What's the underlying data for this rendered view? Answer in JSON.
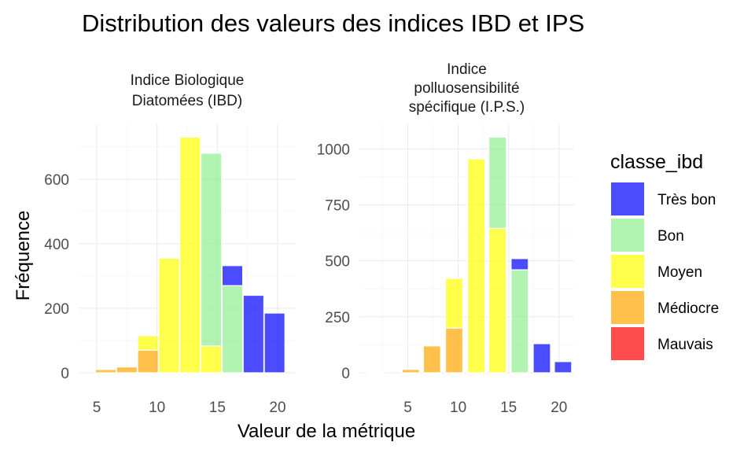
{
  "chart_data": {
    "type": "bar",
    "title": "Distribution des valeurs des indices IBD et IPS",
    "xlabel": "Valeur de la métrique",
    "ylabel": "Fréquence",
    "legend": {
      "title": "classe_ibd",
      "position": "right",
      "items": [
        {
          "name": "Très bon",
          "color": "#0000FF"
        },
        {
          "name": "Bon",
          "color": "#90EE90"
        },
        {
          "name": "Moyen",
          "color": "#FFFF00"
        },
        {
          "name": "Médiocre",
          "color": "#FFA500"
        },
        {
          "name": "Mauvais",
          "color": "#FF0000"
        }
      ]
    },
    "grid": true,
    "stacked": true,
    "panels": [
      {
        "strip": [
          "Indice Biologique",
          "Diatomées (IBD)"
        ],
        "xlim": [
          3.5,
          21.5
        ],
        "ylim": [
          0,
          770
        ],
        "xticks": [
          5,
          10,
          15,
          20
        ],
        "yticks": [
          0,
          200,
          400,
          600
        ],
        "bars": [
          {
            "x": 5.75,
            "stack": [
              {
                "class": "Médiocre",
                "value": 10
              }
            ]
          },
          {
            "x": 7.5,
            "stack": [
              {
                "class": "Médiocre",
                "value": 18
              }
            ]
          },
          {
            "x": 9.25,
            "stack": [
              {
                "class": "Médiocre",
                "value": 70
              },
              {
                "class": "Moyen",
                "value": 45
              }
            ]
          },
          {
            "x": 11,
            "stack": [
              {
                "class": "Moyen",
                "value": 355
              }
            ]
          },
          {
            "x": 12.75,
            "stack": [
              {
                "class": "Moyen",
                "value": 730
              }
            ]
          },
          {
            "x": 14.5,
            "stack": [
              {
                "class": "Moyen",
                "value": 83
              },
              {
                "class": "Bon",
                "value": 597
              }
            ]
          },
          {
            "x": 16.25,
            "stack": [
              {
                "class": "Bon",
                "value": 270
              },
              {
                "class": "Très bon",
                "value": 62
              }
            ]
          },
          {
            "x": 18,
            "stack": [
              {
                "class": "Très bon",
                "value": 240
              }
            ]
          },
          {
            "x": 19.75,
            "stack": [
              {
                "class": "Très bon",
                "value": 185
              }
            ]
          }
        ]
      },
      {
        "strip": [
          "Indice",
          "polluosensibilité",
          "spécifique (I.P.S.)"
        ],
        "xlim": [
          0.2,
          21.5
        ],
        "ylim": [
          0,
          1110
        ],
        "xticks": [
          5,
          10,
          15,
          20
        ],
        "yticks": [
          0,
          250,
          500,
          750,
          1000
        ],
        "bars": [
          {
            "x": 1.8,
            "stack": [
              {
                "class": "Médiocre",
                "value": 2
              }
            ]
          },
          {
            "x": 5.3,
            "stack": [
              {
                "class": "Médiocre",
                "value": 15
              }
            ]
          },
          {
            "x": 7.4,
            "stack": [
              {
                "class": "Médiocre",
                "value": 120
              }
            ]
          },
          {
            "x": 9.6,
            "stack": [
              {
                "class": "Médiocre",
                "value": 200
              },
              {
                "class": "Moyen",
                "value": 222
              }
            ]
          },
          {
            "x": 11.8,
            "stack": [
              {
                "class": "Moyen",
                "value": 955
              }
            ]
          },
          {
            "x": 13.9,
            "stack": [
              {
                "class": "Moyen",
                "value": 645
              },
              {
                "class": "Bon",
                "value": 408
              }
            ]
          },
          {
            "x": 16.1,
            "stack": [
              {
                "class": "Bon",
                "value": 460
              },
              {
                "class": "Très bon",
                "value": 50
              }
            ]
          },
          {
            "x": 18.3,
            "stack": [
              {
                "class": "Très bon",
                "value": 130
              }
            ]
          },
          {
            "x": 20.4,
            "stack": [
              {
                "class": "Très bon",
                "value": 50
              }
            ]
          }
        ]
      }
    ]
  }
}
